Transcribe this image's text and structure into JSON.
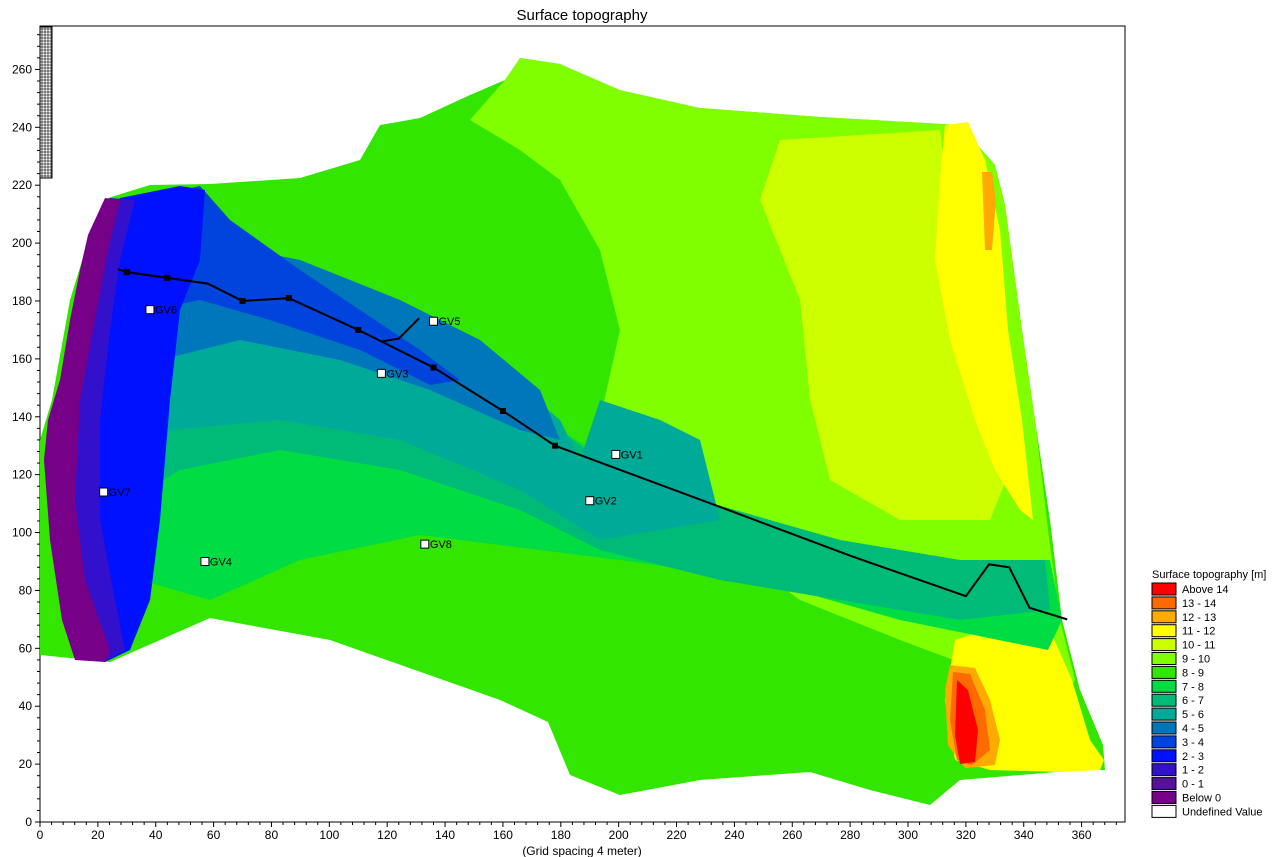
{
  "chart_data": {
    "type": "heatmap",
    "title": "Surface topography",
    "xlabel": "(Grid spacing 4 meter)",
    "ylabel": "",
    "xlim": [
      0,
      375
    ],
    "ylim": [
      0,
      275
    ],
    "x_ticks": [
      0,
      20,
      40,
      60,
      80,
      100,
      120,
      140,
      160,
      180,
      200,
      220,
      240,
      260,
      280,
      300,
      320,
      340,
      360
    ],
    "y_ticks": [
      0,
      20,
      40,
      60,
      80,
      100,
      120,
      140,
      160,
      180,
      200,
      220,
      240,
      260
    ],
    "legend": {
      "title": "Surface topography [m]",
      "placement": "right",
      "items": [
        {
          "label": "Above 14",
          "color": "#ff0000"
        },
        {
          "label": "13 - 14",
          "color": "#ff6a00"
        },
        {
          "label": "12 - 13",
          "color": "#ffaa00"
        },
        {
          "label": "11 - 12",
          "color": "#ffff00"
        },
        {
          "label": "10 - 11",
          "color": "#ccff00"
        },
        {
          "label": "9 - 10",
          "color": "#80ff00"
        },
        {
          "label": "8 - 9",
          "color": "#33e600"
        },
        {
          "label": "7 - 8",
          "color": "#00dd44"
        },
        {
          "label": "6 - 7",
          "color": "#00bb77"
        },
        {
          "label": "5 - 6",
          "color": "#00aa99"
        },
        {
          "label": "4 - 5",
          "color": "#0077bb"
        },
        {
          "label": "3 - 4",
          "color": "#0044dd"
        },
        {
          "label": "2 - 3",
          "color": "#0011ff"
        },
        {
          "label": "1 - 2",
          "color": "#3311cc"
        },
        {
          "label": "0 - 1",
          "color": "#551199"
        },
        {
          "label": "Below 0",
          "color": "#770088"
        },
        {
          "label": "Undefined Value",
          "color": "#ffffff"
        }
      ]
    },
    "points": [
      {
        "name": "GV1",
        "x": 199,
        "y": 127
      },
      {
        "name": "GV2",
        "x": 190,
        "y": 111
      },
      {
        "name": "GV3",
        "x": 118,
        "y": 155
      },
      {
        "name": "GV4",
        "x": 57,
        "y": 90
      },
      {
        "name": "GV5",
        "x": 136,
        "y": 173
      },
      {
        "name": "GV6",
        "x": 38,
        "y": 177
      },
      {
        "name": "GV7",
        "x": 22,
        "y": 114
      },
      {
        "name": "GV8",
        "x": 133,
        "y": 96
      }
    ],
    "line": [
      [
        27,
        191
      ],
      [
        30,
        190
      ],
      [
        44,
        188
      ],
      [
        58,
        186
      ],
      [
        70,
        180
      ],
      [
        86,
        181
      ],
      [
        110,
        170
      ],
      [
        118,
        166
      ],
      [
        124,
        167
      ],
      [
        131,
        174
      ],
      [
        124,
        167
      ],
      [
        118,
        166
      ],
      [
        136,
        157
      ],
      [
        160,
        142
      ],
      [
        178,
        130
      ],
      [
        240,
        107
      ],
      [
        280,
        92
      ],
      [
        320,
        78
      ],
      [
        328,
        89
      ],
      [
        335,
        88
      ],
      [
        342,
        74
      ],
      [
        355,
        70
      ]
    ],
    "line_markers": [
      [
        30,
        190
      ],
      [
        44,
        188
      ],
      [
        70,
        180
      ],
      [
        86,
        181
      ],
      [
        110,
        170
      ],
      [
        136,
        157
      ],
      [
        160,
        142
      ],
      [
        178,
        130
      ]
    ]
  }
}
